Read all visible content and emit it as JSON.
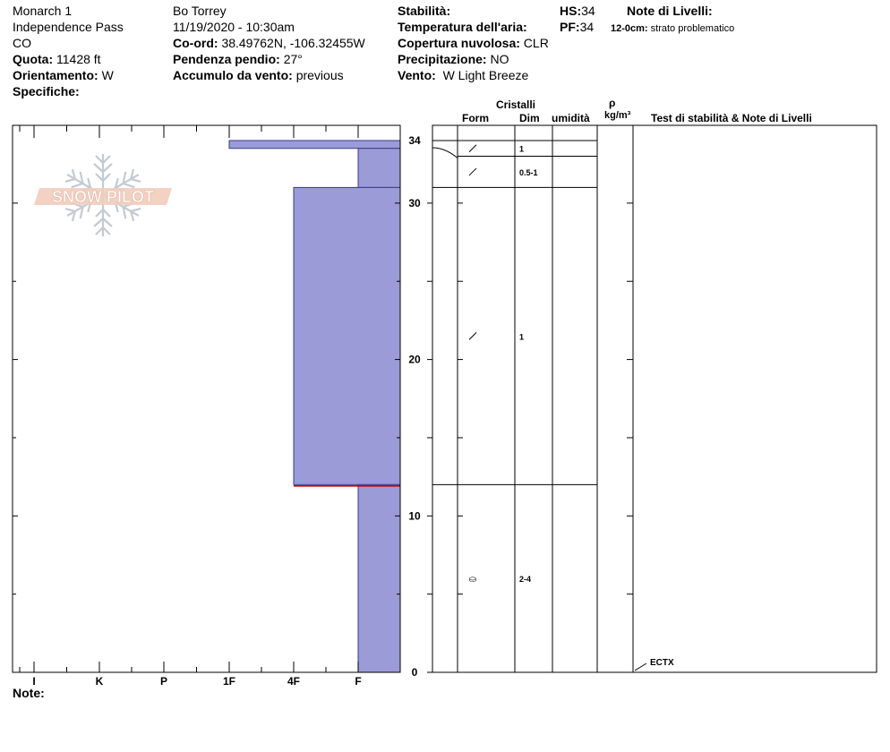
{
  "header": {
    "col1": {
      "location": "Monarch 1",
      "area": "Independence Pass",
      "state": "CO",
      "elevation_label": "Quota:",
      "elevation_value": "11428 ft",
      "aspect_label": "Orientamento:",
      "aspect_value": "W",
      "specifics_label": "Specifiche:"
    },
    "col2": {
      "observer": "Bo Torrey",
      "datetime": "11/19/2020 - 10:30am",
      "coord_label": "Co-ord:",
      "coord_value": "38.49762N, -106.32455W",
      "slope_label": "Pendenza pendio:",
      "slope_value": "27°",
      "wind_loading_label": "Accumulo da vento:",
      "wind_loading_value": "previous"
    },
    "col3": {
      "stability_label": "Stabilità:",
      "air_temp_label": "Temperatura dell'aria:",
      "cloud_label": "Copertura nuvolosa:",
      "cloud_value": "CLR",
      "precip_label": "Precipitazione:",
      "precip_value": "NO",
      "wind_label": "Vento:",
      "wind_value": "W Light Breeze"
    },
    "col4": {
      "hs_label": "HS:",
      "hs_value": "34",
      "pf_label": "PF:",
      "pf_value": "34"
    },
    "col5": {
      "layer_notes_label": "Note di Livelli:",
      "note_depth": "12-0cm:",
      "note_text": "strato problematico"
    }
  },
  "logo": {
    "text": "SNOW PILOT"
  },
  "footer": {
    "notes_label": "Note:"
  },
  "table_headers": {
    "crystals": "Cristalli",
    "form": "Form",
    "dim": "Dim",
    "moisture": "umidità",
    "rho": "ρ",
    "density_unit": "kg/m³",
    "tests": "Test di stabilità & Note di Livelli"
  },
  "chart_data": {
    "type": "bar",
    "title": "",
    "x_categories": [
      "I",
      "K",
      "P",
      "1F",
      "4F",
      "F"
    ],
    "y_ticks": [
      "0",
      "10",
      "20",
      "30",
      "34"
    ],
    "ylim": [
      0,
      35
    ],
    "hardness_layers": [
      {
        "top": 34,
        "bottom": 33.5,
        "hardness": "1F"
      },
      {
        "top": 33.5,
        "bottom": 31,
        "hardness": "F"
      },
      {
        "top": 31,
        "bottom": 12,
        "hardness": "4F"
      },
      {
        "top": 12,
        "bottom": 0,
        "hardness": "F"
      }
    ],
    "crystal_layers": [
      {
        "top": 34,
        "bottom": 33,
        "form": "/",
        "size": "1"
      },
      {
        "top": 33,
        "bottom": 31,
        "form": "/",
        "size": "0.5-1"
      },
      {
        "top": 31,
        "bottom": 12,
        "form": "/",
        "size": "1"
      },
      {
        "top": 12,
        "bottom": 0,
        "form": "⛀",
        "size": "2-4"
      }
    ],
    "tests": [
      {
        "depth": 0,
        "label": "ECTX"
      }
    ],
    "problem_layer_depth": 12,
    "colors": {
      "bar_fill": "#9b9bd8",
      "bar_stroke": "#3a3a8a",
      "problem_line": "#cc0000"
    }
  }
}
